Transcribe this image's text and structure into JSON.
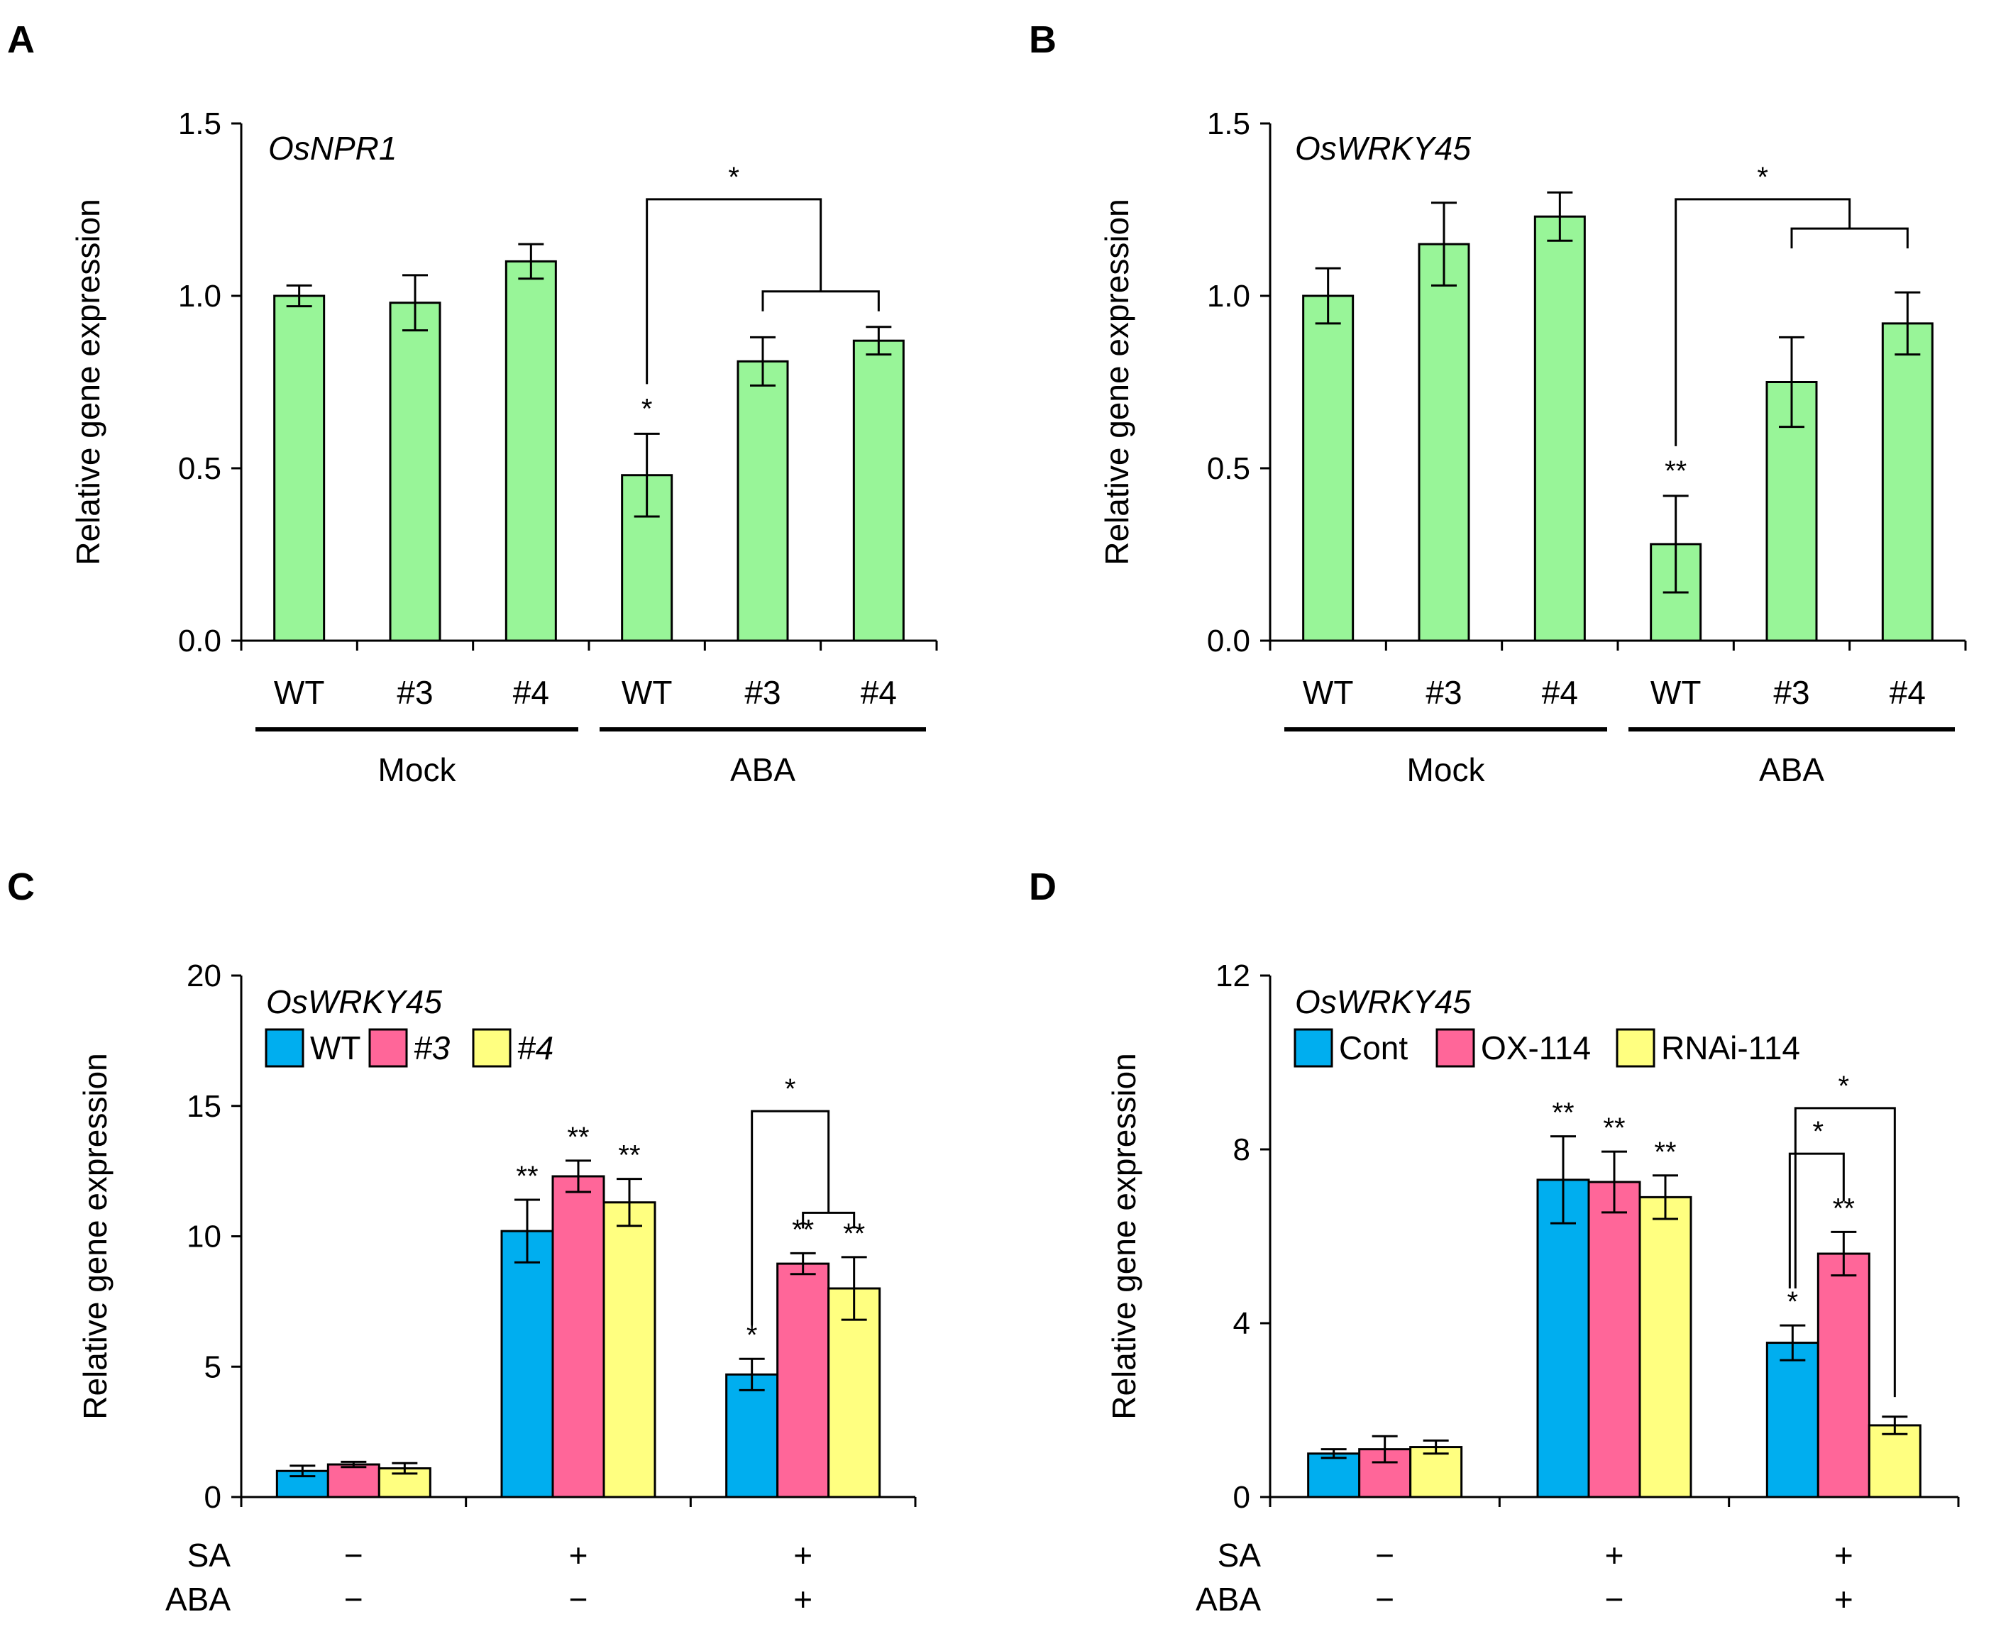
{
  "chart_data": [
    {
      "type": "bar",
      "panel": "A",
      "gene": "OsNPR1",
      "ylabel": "Relative gene expression",
      "ylim": [
        0,
        1.5
      ],
      "yticks": [
        "0.0",
        "0.5",
        "1.0",
        "1.5"
      ],
      "categories": [
        "WT",
        "#3",
        "#4",
        "WT",
        "#3",
        "#4"
      ],
      "groups": [
        "Mock",
        "ABA"
      ],
      "values": [
        1.0,
        0.98,
        1.1,
        0.48,
        0.81,
        0.87
      ],
      "errors": [
        0.03,
        0.08,
        0.05,
        0.12,
        0.07,
        0.04
      ],
      "stars": [
        "",
        "",
        "",
        "*",
        "",
        ""
      ],
      "bracket_star": "*",
      "color": "#98F598"
    },
    {
      "type": "bar",
      "panel": "B",
      "gene": "OsWRKY45",
      "ylabel": "Relative gene expression",
      "ylim": [
        0,
        1.5
      ],
      "yticks": [
        "0.0",
        "0.5",
        "1.0",
        "1.5"
      ],
      "categories": [
        "WT",
        "#3",
        "#4",
        "WT",
        "#3",
        "#4"
      ],
      "groups": [
        "Mock",
        "ABA"
      ],
      "values": [
        1.0,
        1.15,
        1.23,
        0.28,
        0.75,
        0.92
      ],
      "errors": [
        0.08,
        0.12,
        0.07,
        0.14,
        0.13,
        0.09
      ],
      "stars": [
        "",
        "",
        "",
        "**",
        "",
        ""
      ],
      "bracket_star": "*",
      "color": "#98F598"
    },
    {
      "type": "bar",
      "panel": "C",
      "gene": "OsWRKY45",
      "ylabel": "Relative gene expression",
      "ylim": [
        0,
        20
      ],
      "yticks": [
        "0",
        "5",
        "10",
        "15",
        "20"
      ],
      "legend": [
        "WT",
        "#3",
        "#4"
      ],
      "legend_italic": [
        false,
        true,
        true
      ],
      "colors": [
        "#00AEEF",
        "#FF6699",
        "#FFFF80"
      ],
      "treatment_rows": [
        "SA",
        "ABA"
      ],
      "treatments": [
        [
          "−",
          "−"
        ],
        [
          "+",
          "−"
        ],
        [
          "+",
          "+"
        ]
      ],
      "series": [
        {
          "name": "WT",
          "values": [
            1.0,
            10.2,
            4.7
          ],
          "errors": [
            0.2,
            1.2,
            0.6
          ],
          "stars": [
            "",
            "**",
            "*"
          ]
        },
        {
          "name": "#3",
          "values": [
            1.25,
            12.3,
            8.95
          ],
          "errors": [
            0.1,
            0.6,
            0.4
          ],
          "stars": [
            "",
            "**",
            "**"
          ]
        },
        {
          "name": "#4",
          "values": [
            1.1,
            11.3,
            8.0
          ],
          "errors": [
            0.2,
            0.9,
            1.2
          ],
          "stars": [
            "",
            "**",
            "**"
          ]
        }
      ],
      "bracket_star": "*"
    },
    {
      "type": "bar",
      "panel": "D",
      "gene": "OsWRKY45",
      "ylabel": "Relative gene expression",
      "ylim": [
        0,
        12
      ],
      "yticks": [
        "0",
        "4",
        "8",
        "12"
      ],
      "legend": [
        "Cont",
        "OX-114",
        "RNAi-114"
      ],
      "legend_italic": [
        false,
        false,
        false
      ],
      "colors": [
        "#00AEEF",
        "#FF6699",
        "#FFFF80"
      ],
      "treatment_rows": [
        "SA",
        "ABA"
      ],
      "treatments": [
        [
          "−",
          "−"
        ],
        [
          "+",
          "−"
        ],
        [
          "+",
          "+"
        ]
      ],
      "series": [
        {
          "name": "Cont",
          "values": [
            1.0,
            7.3,
            3.55
          ],
          "errors": [
            0.1,
            1.0,
            0.4
          ],
          "stars": [
            "",
            "**",
            "*"
          ]
        },
        {
          "name": "OX-114",
          "values": [
            1.1,
            7.25,
            5.6
          ],
          "errors": [
            0.3,
            0.7,
            0.5
          ],
          "stars": [
            "",
            "**",
            "**"
          ]
        },
        {
          "name": "RNAi-114",
          "values": [
            1.15,
            6.9,
            1.65
          ],
          "errors": [
            0.15,
            0.5,
            0.2
          ],
          "stars": [
            "",
            "**",
            ""
          ]
        }
      ],
      "bracket_stars": [
        "*",
        "*"
      ]
    }
  ]
}
